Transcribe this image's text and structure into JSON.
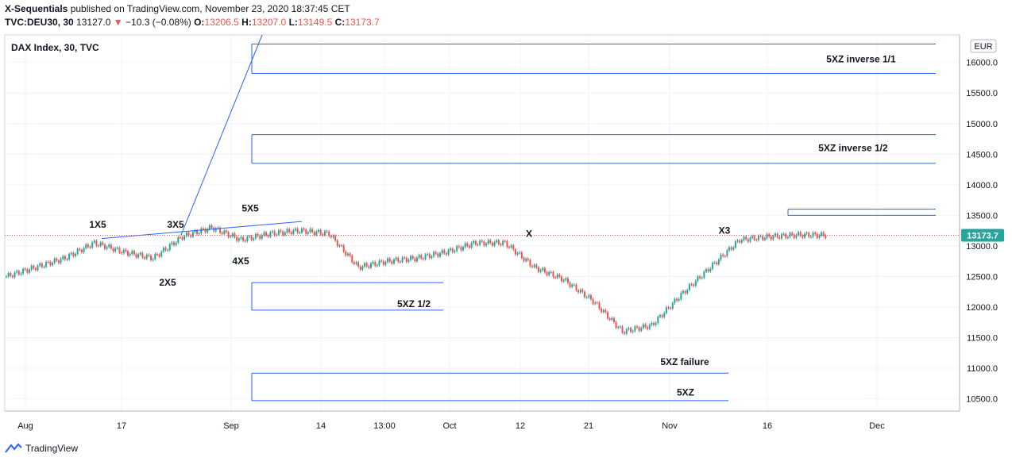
{
  "header": {
    "publisher": "X-Sequentials",
    "publish_text": " published on TradingView.com, November 23, 2020 18:37:45 CET",
    "symbol": "TVC:DEU30, 30",
    "last": "13127.0",
    "change_arrow": "▼",
    "change": "−10.3 (−0.08%)",
    "o_label": "O:",
    "o": "13206.5",
    "h_label": "H:",
    "h": "13207.0",
    "l_label": "L:",
    "l": "13149.5",
    "c_label": "C:",
    "c": "13173.7"
  },
  "chart_title": "DAX Index, 30, TVC",
  "currency_badge": "EUR",
  "price_badge": "13173.7",
  "footer": {
    "logo_icon": "tradingview-logo-icon",
    "brand": "TradingView"
  },
  "colors": {
    "up": "#26a69a",
    "down": "#ef5350",
    "lines": "#2962ff",
    "badge": "#26a69a",
    "text": "#131722"
  },
  "chart_data": {
    "type": "candlestick",
    "title": "DAX Index, 30, TVC",
    "ylabel": "EUR",
    "y_ticks": [
      "16000.0",
      "15500.0",
      "15000.0",
      "14500.0",
      "14000.0",
      "13500.0",
      "13000.0",
      "12500.0",
      "12000.0",
      "11500.0",
      "11000.0",
      "10500.0"
    ],
    "x_ticks": [
      "Aug",
      "17",
      "Sep",
      "14",
      "13:00",
      "Oct",
      "12",
      "21",
      "Nov",
      "16",
      "Dec"
    ],
    "ylim": [
      10300,
      16450
    ],
    "last_price": 13173.7,
    "grid": true,
    "path_points": [
      [
        "Aug",
        12500
      ],
      [
        "Aug",
        12650
      ],
      [
        "Aug",
        12800
      ],
      [
        "17",
        13050
      ],
      [
        "17",
        12900
      ],
      [
        "17",
        12800
      ],
      [
        "Sep",
        13150
      ],
      [
        "Sep",
        13300
      ],
      [
        "Sep",
        13100
      ],
      [
        "14",
        13200
      ],
      [
        "14",
        13250
      ],
      [
        "14",
        13200
      ],
      [
        "13:00",
        12650
      ],
      [
        "13:00",
        12750
      ],
      [
        "Oct",
        12800
      ],
      [
        "Oct",
        12900
      ],
      [
        "12",
        13050
      ],
      [
        "12",
        13050
      ],
      [
        "21",
        12650
      ],
      [
        "21",
        12450
      ],
      [
        "21",
        12100
      ],
      [
        "Nov",
        11600
      ],
      [
        "Nov",
        11700
      ],
      [
        "Nov",
        12200
      ],
      [
        "Nov",
        12650
      ],
      [
        "16",
        13100
      ],
      [
        "16",
        13150
      ],
      [
        "16",
        13180
      ],
      [
        "16",
        13173.7
      ]
    ],
    "annotations": [
      {
        "text": "1X5",
        "x_at": "17",
        "y": 13300
      },
      {
        "text": "3X5",
        "x_at": "Sep",
        "y": 13300
      },
      {
        "text": "5X5",
        "x_at": "Sep",
        "y": 13560
      },
      {
        "text": "2X5",
        "x_at": "17",
        "y": 12350
      },
      {
        "text": "4X5",
        "x_at": "Sep",
        "y": 12700
      },
      {
        "text": "5XZ inverse 1/1",
        "x_at": "Dec",
        "y": 16000
      },
      {
        "text": "5XZ inverse 1/2",
        "x_at": "Dec",
        "y": 14550
      },
      {
        "text": "5XZ 1/2",
        "x_at": "13:00",
        "y": 12000
      },
      {
        "text": "5XZ failure",
        "x_at": "Nov",
        "y": 11050
      },
      {
        "text": "5XZ",
        "x_at": "Nov",
        "y": 10550
      },
      {
        "text": "X",
        "x_at": "12",
        "y": 13150
      },
      {
        "text": "X3",
        "x_at": "16",
        "y": 13200
      }
    ],
    "levels": [
      {
        "y_top": 16300,
        "y_bottom": 15820,
        "from": "Sep",
        "to": "Dec"
      },
      {
        "y_top": 14820,
        "y_bottom": 14350,
        "from": "Sep",
        "to": "Dec"
      },
      {
        "y_top": 12400,
        "y_bottom": 11950,
        "from": "Sep",
        "to": "13:00"
      },
      {
        "y_top": 10920,
        "y_bottom": 10470,
        "from": "Sep",
        "to": "Nov"
      },
      {
        "y_top": 13600,
        "y_bottom": 13500,
        "from": "16",
        "to": "Dec"
      }
    ]
  }
}
